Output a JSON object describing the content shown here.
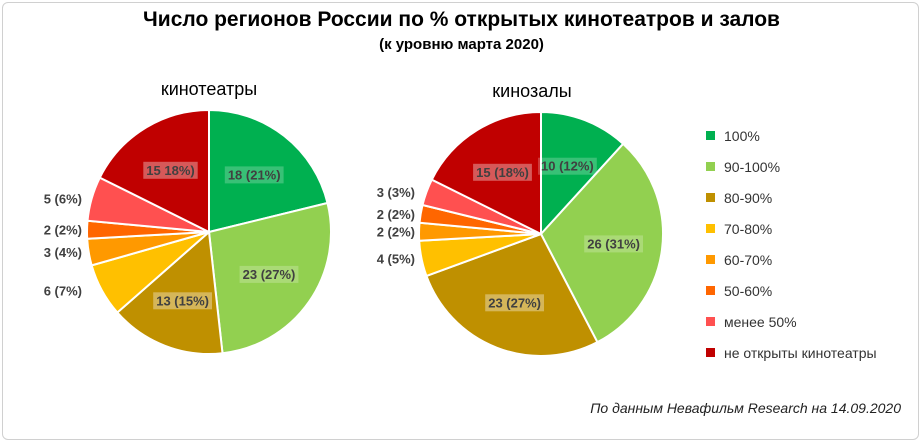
{
  "title": "Число регионов России по % открытых кинотеатров и залов",
  "subtitle": "(к уровню марта 2020)",
  "source": "По данным Невафильм Research на 14.09.2020",
  "legend": [
    {
      "label": "100%",
      "color": "#00b050"
    },
    {
      "label": "90-100%",
      "color": "#92d050"
    },
    {
      "label": "80-90%",
      "color": "#bf9000"
    },
    {
      "label": "70-80%",
      "color": "#ffc000"
    },
    {
      "label": "60-70%",
      "color": "#ff9900"
    },
    {
      "label": "50-60%",
      "color": "#ff6600"
    },
    {
      "label": "менее 50%",
      "color": "#ff5050"
    },
    {
      "label": "не открыты кинотеатры",
      "color": "#c00000"
    }
  ],
  "chart_data": [
    {
      "type": "pie",
      "title": "кинотеатры",
      "categories": [
        "100%",
        "90-100%",
        "80-90%",
        "70-80%",
        "60-70%",
        "50-60%",
        "менее 50%",
        "не открыты кинотеатры"
      ],
      "values": [
        18,
        23,
        13,
        6,
        3,
        2,
        5,
        15
      ],
      "labels": [
        "18 (21%)",
        "23 (27%)",
        "13 (15%)",
        "6 (7%)",
        "3 (4%)",
        "2 (2%)",
        "5 (6%)",
        "15 18%)"
      ]
    },
    {
      "type": "pie",
      "title": "кинозалы",
      "categories": [
        "100%",
        "90-100%",
        "80-90%",
        "70-80%",
        "60-70%",
        "50-60%",
        "менее 50%",
        "не открыты кинотеатры"
      ],
      "values": [
        10,
        26,
        23,
        4,
        2,
        2,
        3,
        15
      ],
      "labels": [
        "10 (12%)",
        "26 (31%)",
        "23 (27%)",
        "4 (5%)",
        "2 (2%)",
        "2 (2%)",
        "3 (3%)",
        "15 (18%)"
      ]
    }
  ]
}
